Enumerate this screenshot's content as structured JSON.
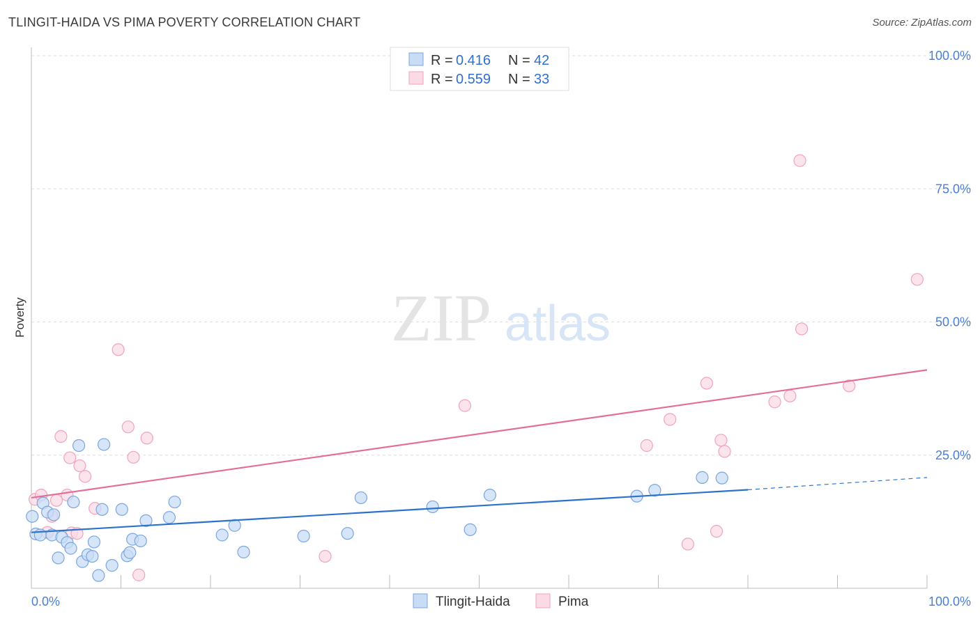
{
  "title": "TLINGIT-HAIDA VS PIMA POVERTY CORRELATION CHART",
  "source": "Source: ZipAtlas.com",
  "colors": {
    "blue_fill": "#c8dcf5",
    "blue_stroke": "#7aa6de",
    "blue_line": "#2a72cc",
    "pink_fill": "#fadbe5",
    "pink_stroke": "#f0a3bb",
    "pink_line": "#e46e98",
    "tick_text": "#4a7fd0",
    "grid": "#dddddd"
  },
  "legend": {
    "rows": [
      {
        "r_label": "R =",
        "r_value": "0.416",
        "n_label": "N =",
        "n_value": "42"
      },
      {
        "r_label": "R =",
        "r_value": "0.559",
        "n_label": "N =",
        "n_value": "33"
      }
    ]
  },
  "bottom_legend": [
    "Tlingit-Haida",
    "Pima"
  ],
  "watermark": {
    "zip": "ZIP",
    "atlas": "atlas"
  },
  "chart_data": {
    "type": "scatter",
    "title": "TLINGIT-HAIDA VS PIMA POVERTY CORRELATION CHART",
    "xlabel": "",
    "ylabel": "Poverty",
    "xlim": [
      0,
      100
    ],
    "ylim": [
      0,
      100
    ],
    "x_tick_labels": [
      "0.0%",
      "100.0%"
    ],
    "y_ticks": [
      25,
      50,
      75,
      100
    ],
    "y_tick_labels": [
      "25.0%",
      "50.0%",
      "75.0%",
      "100.0%"
    ],
    "grid": true,
    "legend_position": "top-center",
    "series": [
      {
        "name": "Tlingit-Haida",
        "r": 0.416,
        "n": 42,
        "trend": {
          "x0": 0,
          "y0": 10.5,
          "x1": 80,
          "y1": 18.5,
          "dashed_to_x": 100,
          "dashed_to_y": 20.8
        },
        "points": [
          [
            0.1,
            13.5
          ],
          [
            0.5,
            10.2
          ],
          [
            1.0,
            10.0
          ],
          [
            1.3,
            16.0
          ],
          [
            1.8,
            14.3
          ],
          [
            2.3,
            10.0
          ],
          [
            2.5,
            13.8
          ],
          [
            3.0,
            5.7
          ],
          [
            3.4,
            9.6
          ],
          [
            4.0,
            8.6
          ],
          [
            4.4,
            7.5
          ],
          [
            4.7,
            16.2
          ],
          [
            5.3,
            26.8
          ],
          [
            5.7,
            5.0
          ],
          [
            6.3,
            6.3
          ],
          [
            6.8,
            6.0
          ],
          [
            7.0,
            8.7
          ],
          [
            7.5,
            2.4
          ],
          [
            7.9,
            14.8
          ],
          [
            8.1,
            27.0
          ],
          [
            9.0,
            4.3
          ],
          [
            10.1,
            14.8
          ],
          [
            10.7,
            6.1
          ],
          [
            11.0,
            6.7
          ],
          [
            11.3,
            9.2
          ],
          [
            12.2,
            8.9
          ],
          [
            12.8,
            12.7
          ],
          [
            15.4,
            13.3
          ],
          [
            16.0,
            16.2
          ],
          [
            21.3,
            10.0
          ],
          [
            22.7,
            11.8
          ],
          [
            23.7,
            6.8
          ],
          [
            30.4,
            9.8
          ],
          [
            35.3,
            10.3
          ],
          [
            36.8,
            17.0
          ],
          [
            44.8,
            15.3
          ],
          [
            49.0,
            11.0
          ],
          [
            51.2,
            17.5
          ],
          [
            67.6,
            17.3
          ],
          [
            69.6,
            18.4
          ],
          [
            74.9,
            20.8
          ],
          [
            77.1,
            20.7
          ]
        ]
      },
      {
        "name": "Pima",
        "r": 0.559,
        "n": 33,
        "trend": {
          "x0": 0,
          "y0": 17.0,
          "x1": 100,
          "y1": 41.0
        },
        "points": [
          [
            0.4,
            16.7
          ],
          [
            1.1,
            17.5
          ],
          [
            1.8,
            10.5
          ],
          [
            2.3,
            13.5
          ],
          [
            2.8,
            16.5
          ],
          [
            3.3,
            28.5
          ],
          [
            4.0,
            17.5
          ],
          [
            4.3,
            24.5
          ],
          [
            4.5,
            10.4
          ],
          [
            5.1,
            10.3
          ],
          [
            5.4,
            23.0
          ],
          [
            6.0,
            21.0
          ],
          [
            7.1,
            15.0
          ],
          [
            9.7,
            44.8
          ],
          [
            10.8,
            30.3
          ],
          [
            11.4,
            24.6
          ],
          [
            12.0,
            2.5
          ],
          [
            12.9,
            28.2
          ],
          [
            32.8,
            6.0
          ],
          [
            48.4,
            34.3
          ],
          [
            68.7,
            26.8
          ],
          [
            71.3,
            31.7
          ],
          [
            73.3,
            8.3
          ],
          [
            75.4,
            38.5
          ],
          [
            76.5,
            10.7
          ],
          [
            77.0,
            27.8
          ],
          [
            77.4,
            25.7
          ],
          [
            83.0,
            35.0
          ],
          [
            84.7,
            36.1
          ],
          [
            85.8,
            80.3
          ],
          [
            86.0,
            48.7
          ],
          [
            91.3,
            38.0
          ],
          [
            98.9,
            58.0
          ]
        ]
      }
    ]
  }
}
